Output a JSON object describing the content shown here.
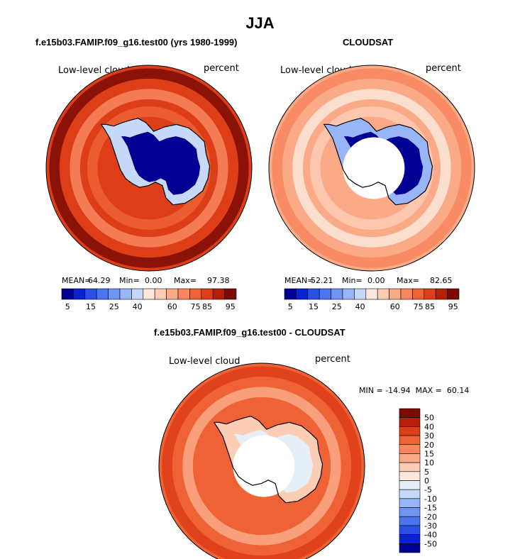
{
  "title": "JJA",
  "colors": {
    "land_outline": "#000000",
    "missing": "#ffffff",
    "abs_palette": [
      "#000092",
      "#0a22d0",
      "#2a4fe6",
      "#4a74f0",
      "#6f95f3",
      "#98b6f7",
      "#c6d9f8",
      "#fbe7dc",
      "#fdcdb5",
      "#fbaa88",
      "#f8875f",
      "#ef6236",
      "#dd3e18",
      "#b51f08",
      "#7d0b03"
    ],
    "diff_palette": [
      "#000092",
      "#0a22d0",
      "#2a4fe6",
      "#4a74f0",
      "#6f95f3",
      "#98b6f7",
      "#c6d9f8",
      "#e6eef8",
      "#fbe7dc",
      "#fdcdb5",
      "#fbaa88",
      "#f8875f",
      "#ef6236",
      "#dd3e18",
      "#b51f08",
      "#7d0b03"
    ]
  },
  "chart_data": [
    {
      "type": "heatmap",
      "projection": "south polar stereographic",
      "title": "f.e15b03.FAMIP.f09_g16.test00 (yrs 1980-1999)",
      "left_label": "Low-level cloud",
      "right_label": "percent",
      "stats": {
        "mean_label": "MEAN=",
        "mean": "64.29",
        "min_label": "Min=",
        "min": "0.00",
        "max_label": "Max=",
        "max": "97.38"
      },
      "colorbar": {
        "orientation": "horizontal",
        "tick_labels": [
          "5",
          "15",
          "25",
          "40",
          "60",
          "75",
          "85",
          "95"
        ]
      },
      "field": {
        "ocean_value": 85,
        "continent_interior": 3,
        "coast_value": 35,
        "pole_missing": false
      }
    },
    {
      "type": "heatmap",
      "projection": "south polar stereographic",
      "title": "CLOUDSAT",
      "left_label": "Low-level cloud",
      "right_label": "percent",
      "stats": {
        "mean_label": "MEAN=",
        "mean": "52.21",
        "min_label": "Min=",
        "min": "0.00",
        "max_label": "Max=",
        "max": "82.65"
      },
      "colorbar": {
        "orientation": "horizontal",
        "tick_labels": [
          "5",
          "15",
          "25",
          "40",
          "60",
          "75",
          "85",
          "95"
        ]
      },
      "field": {
        "ocean_value": 62,
        "continent_interior": 3,
        "coast_value": 30,
        "pole_missing": true
      }
    },
    {
      "type": "heatmap",
      "projection": "south polar stereographic",
      "title": "f.e15b03.FAMIP.f09_g16.test00 - CLOUDSAT",
      "left_label": "Low-level cloud",
      "right_label": "percent",
      "stats_text": "MIN = -14.94  MAX =  60.14",
      "colorbar": {
        "orientation": "vertical",
        "tick_labels": [
          "50",
          "40",
          "30",
          "20",
          "15",
          "10",
          "5",
          "0",
          "-5",
          "-10",
          "-15",
          "-20",
          "-30",
          "-40",
          "-50"
        ]
      },
      "field": {
        "ocean_value": 25,
        "continent_interior": 0,
        "coast_value": 8,
        "pole_missing": true
      }
    }
  ]
}
